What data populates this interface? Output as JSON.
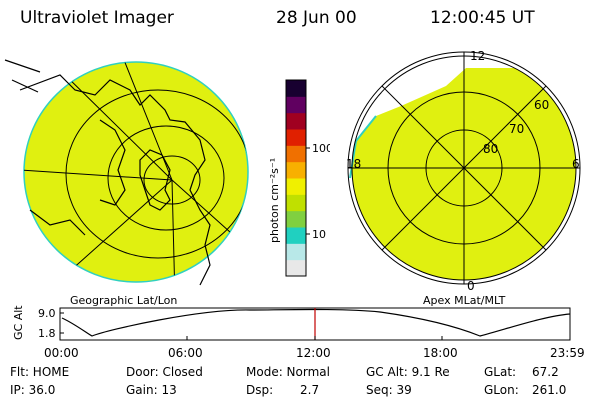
{
  "header": {
    "instrument": "Ultraviolet Imager",
    "date": "28 Jun 00",
    "time": "12:00:45 UT"
  },
  "colorbar": {
    "unit_label": "photon cm⁻²s⁻¹",
    "tick_100": "100",
    "tick_10": "10",
    "colors": [
      "#e8e8e8",
      "#b8e8e8",
      "#20d0c0",
      "#80d040",
      "#c0e000",
      "#f0f000",
      "#f8b000",
      "#f07000",
      "#e02000",
      "#a00020",
      "#600060",
      "#180030"
    ]
  },
  "geo_panel": {
    "label": "Geographic Lat/Lon",
    "fill_color": "#e0f010"
  },
  "apex_panel": {
    "label": "Apex MLat/MLT",
    "mlt_labels": {
      "top": "12",
      "left": "18",
      "right": "6",
      "bottom": "0"
    },
    "mlat_labels": [
      "60",
      "70",
      "80"
    ]
  },
  "altitude_plot": {
    "ylabel": "GC Alt",
    "ytick_high": "9.0",
    "ytick_low": "1.8",
    "xticks": [
      "00:00",
      "06:00",
      "12:00",
      "18:00",
      "23:59"
    ],
    "current_time_marker_color": "#c00000"
  },
  "status": {
    "flt": "Flt: HOME",
    "ip": "IP: 36.0",
    "door": "Door: Closed",
    "gain": "Gain: 13",
    "mode": "Mode: Normal",
    "dsp": "Dsp:",
    "dsp_value": "2.7",
    "gcalt": "GC Alt: 9.1 Re",
    "seq": "Seq: 39",
    "glat": "GLat:",
    "glat_value": "67.2",
    "glon": "GLon:",
    "glon_value": "261.0"
  }
}
